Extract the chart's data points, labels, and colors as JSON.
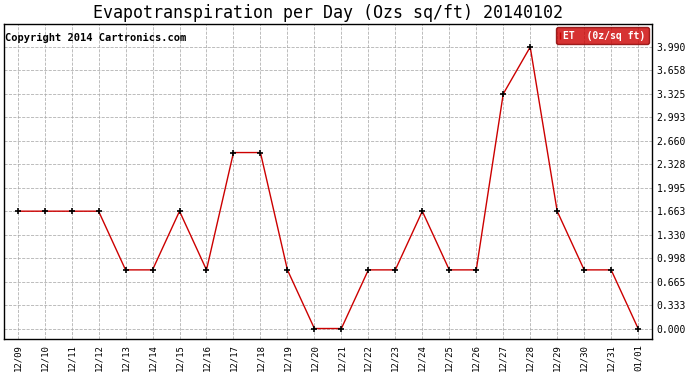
{
  "title": "Evapotranspiration per Day (Ozs sq/ft) 20140102",
  "copyright": "Copyright 2014 Cartronics.com",
  "legend_label": "ET  (0z/sq ft)",
  "dates": [
    "12/09",
    "12/10",
    "12/11",
    "12/12",
    "12/13",
    "12/14",
    "12/15",
    "12/16",
    "12/17",
    "12/18",
    "12/19",
    "12/20",
    "12/21",
    "12/22",
    "12/23",
    "12/24",
    "12/25",
    "12/26",
    "12/27",
    "12/28",
    "12/29",
    "12/30",
    "12/31",
    "01/01"
  ],
  "values": [
    1.663,
    1.663,
    1.663,
    1.663,
    0.831,
    0.831,
    1.663,
    0.831,
    2.494,
    2.494,
    0.831,
    0.0,
    0.0,
    0.831,
    0.831,
    1.663,
    0.831,
    0.831,
    3.325,
    3.99,
    1.663,
    0.831,
    0.831,
    0.0
  ],
  "yticks": [
    0.0,
    0.333,
    0.665,
    0.998,
    1.33,
    1.663,
    1.995,
    2.328,
    2.66,
    2.993,
    3.325,
    3.658,
    3.99
  ],
  "line_color": "#cc0000",
  "marker_color": "#000000",
  "background_color": "#ffffff",
  "grid_color": "#aaaaaa",
  "title_fontsize": 12,
  "copyright_fontsize": 7.5,
  "legend_bg": "#cc0000",
  "legend_text_color": "#ffffff",
  "ylim": [
    -0.15,
    4.32
  ]
}
